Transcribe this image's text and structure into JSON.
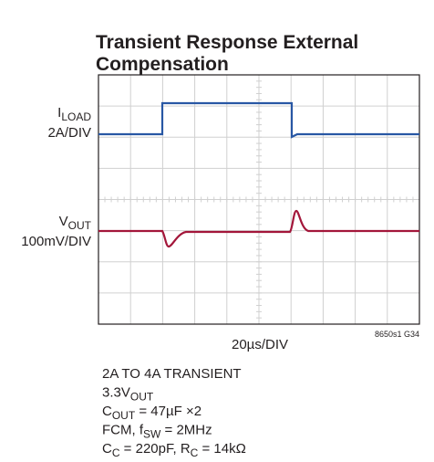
{
  "title": [
    "Transient Response External",
    "Compensation"
  ],
  "labels": {
    "iload": [
      "I",
      "LOAD"
    ],
    "iload_scale": "2A/DIV",
    "vout": [
      "V",
      "OUT"
    ],
    "vout_scale": "100mV/DIV",
    "time_scale": "20µs/DIV",
    "figure_id": "8650s1 G34"
  },
  "notes": [
    [
      "2A TO 4A TRANSIENT"
    ],
    [
      "3.3V",
      "OUT"
    ],
    [
      "C",
      "OUT",
      " = 47µF ×2"
    ],
    [
      "FCM, f",
      "SW",
      " = 2MHz"
    ],
    [
      "C",
      "C",
      " = 220pF, R",
      "C",
      " = 14kΩ"
    ]
  ]
}
